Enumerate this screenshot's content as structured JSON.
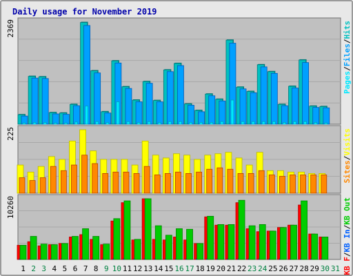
{
  "title": "Daily usage for November 2019",
  "colors": {
    "hits": "#00c0c0",
    "files": "#00a0ff",
    "pages": "#00e8ff",
    "visits": "#ffff00",
    "sites": "#ff8800",
    "kbf": "#ff0000",
    "kbin": "#0060ff",
    "kbout": "#00cc00",
    "weekend": "#008040",
    "weekday": "#000000",
    "slash": "#000000"
  },
  "chart_data": [
    {
      "type": "bar",
      "categories": [
        "1",
        "2",
        "3",
        "4",
        "5",
        "6",
        "7",
        "8",
        "9",
        "10",
        "11",
        "12",
        "13",
        "14",
        "15",
        "16",
        "17",
        "18",
        "19",
        "20",
        "21",
        "22",
        "23",
        "24",
        "25",
        "26",
        "27",
        "28",
        "29",
        "30",
        "31"
      ],
      "weekend_days": [
        "2",
        "3",
        "9",
        "10",
        "16",
        "17",
        "23",
        "24",
        "30",
        "31"
      ],
      "y_max_label": "2369",
      "ylim": [
        0,
        2369
      ],
      "series": [
        {
          "name": "Hits",
          "values": [
            220,
            1110,
            1100,
            270,
            260,
            460,
            2360,
            1240,
            290,
            1470,
            870,
            560,
            990,
            550,
            1260,
            1410,
            470,
            320,
            700,
            580,
            1950,
            860,
            760,
            1380,
            1220,
            460,
            880,
            1490,
            420,
            410,
            0
          ]
        },
        {
          "name": "Files",
          "values": [
            190,
            1070,
            1060,
            240,
            230,
            430,
            2290,
            1190,
            260,
            1420,
            830,
            520,
            950,
            520,
            1220,
            1360,
            440,
            290,
            660,
            540,
            1880,
            820,
            730,
            1330,
            1180,
            430,
            840,
            1430,
            390,
            380,
            0
          ]
        },
        {
          "name": "Pages",
          "values": [
            30,
            40,
            40,
            30,
            30,
            50,
            420,
            60,
            40,
            520,
            60,
            40,
            60,
            40,
            60,
            60,
            40,
            40,
            40,
            60,
            560,
            60,
            60,
            60,
            60,
            40,
            60,
            60,
            40,
            30,
            0
          ]
        }
      ]
    },
    {
      "type": "bar",
      "categories": [
        "1",
        "2",
        "3",
        "4",
        "5",
        "6",
        "7",
        "8",
        "9",
        "10",
        "11",
        "12",
        "13",
        "14",
        "15",
        "16",
        "17",
        "18",
        "19",
        "20",
        "21",
        "22",
        "23",
        "24",
        "25",
        "26",
        "27",
        "28",
        "29",
        "30",
        "31"
      ],
      "y_max_label": "225",
      "ylim": [
        0,
        225
      ],
      "series": [
        {
          "name": "Visits",
          "values": [
            100,
            75,
            95,
            130,
            120,
            185,
            225,
            150,
            120,
            120,
            120,
            100,
            185,
            135,
            125,
            140,
            135,
            120,
            135,
            140,
            145,
            125,
            100,
            145,
            80,
            80,
            75,
            75,
            70,
            70,
            0
          ]
        },
        {
          "name": "Sites",
          "values": [
            55,
            45,
            55,
            95,
            80,
            100,
            135,
            105,
            70,
            75,
            75,
            70,
            95,
            65,
            70,
            75,
            70,
            75,
            85,
            90,
            85,
            70,
            70,
            80,
            65,
            60,
            65,
            65,
            65,
            65,
            0
          ]
        }
      ]
    },
    {
      "type": "bar",
      "categories": [
        "1",
        "2",
        "3",
        "4",
        "5",
        "6",
        "7",
        "8",
        "9",
        "10",
        "11",
        "12",
        "13",
        "14",
        "15",
        "16",
        "17",
        "18",
        "19",
        "20",
        "21",
        "22",
        "23",
        "24",
        "25",
        "26",
        "27",
        "28",
        "29",
        "30",
        "31"
      ],
      "y_max_label": "10260",
      "ylim": [
        0,
        10260
      ],
      "series": [
        {
          "name": "KB F",
          "values": [
            2400,
            3000,
            2300,
            2500,
            2700,
            3800,
            4200,
            3400,
            2500,
            6500,
            9600,
            3300,
            10260,
            3400,
            3300,
            3800,
            3300,
            2700,
            7200,
            5800,
            5800,
            9600,
            5200,
            4700,
            4800,
            5400,
            5800,
            9200,
            4300,
            3800,
            0
          ]
        },
        {
          "name": "KB In",
          "values": [
            100,
            100,
            100,
            100,
            100,
            100,
            100,
            100,
            100,
            100,
            100,
            100,
            100,
            100,
            100,
            100,
            100,
            100,
            100,
            100,
            100,
            100,
            100,
            100,
            100,
            100,
            100,
            100,
            100,
            100,
            0
          ]
        },
        {
          "name": "KB Out",
          "values": [
            2400,
            3900,
            2600,
            2500,
            2700,
            3900,
            5200,
            3900,
            2600,
            6900,
            9900,
            3400,
            10260,
            5700,
            4100,
            5200,
            5100,
            2700,
            7300,
            5900,
            5900,
            10000,
            5700,
            5900,
            4800,
            5400,
            5800,
            9900,
            4300,
            3800,
            0
          ]
        }
      ]
    }
  ],
  "legend_top": [
    "Pages",
    "/",
    "Files",
    "/",
    "Hits"
  ],
  "legend_mid": [
    "Sites",
    "/",
    "Visits"
  ],
  "legend_bot": [
    "KB F",
    "/",
    "KB In",
    "/",
    "KB Out"
  ]
}
